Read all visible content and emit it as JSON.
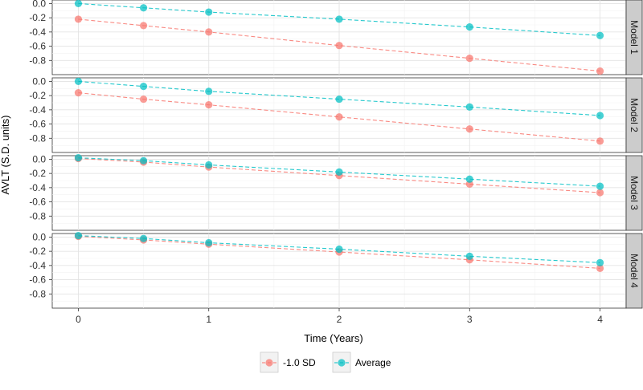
{
  "chart_data": {
    "type": "line",
    "xlabel": "Time (Years)",
    "ylabel": "AVLT (S.D. units)",
    "x": [
      0,
      0.5,
      1,
      2,
      3,
      4
    ],
    "x_ticks": [
      0,
      1,
      2,
      3,
      4
    ],
    "x_tick_labels": [
      "0",
      "1",
      "2",
      "3",
      "4"
    ],
    "xlim": [
      -0.2,
      4.2
    ],
    "ylim": [
      -1.0,
      0.05
    ],
    "y_ticks": [
      0.0,
      -0.2,
      -0.4,
      -0.6,
      -0.8
    ],
    "y_tick_labels": [
      "0.0",
      "-0.2",
      "-0.4",
      "-0.6",
      "-0.8"
    ],
    "grid": true,
    "legend_position": "bottom",
    "colors": {
      "-1.0 SD": "#F8766D",
      "Average": "#00BFC4",
      "panel_background": "#FFFFFF",
      "strip_background": "#CCCCCC"
    },
    "facets": [
      {
        "label": "Model 1",
        "series": [
          {
            "name": "-1.0 SD",
            "values": [
              -0.22,
              -0.31,
              -0.4,
              -0.59,
              -0.77,
              -0.95
            ]
          },
          {
            "name": "Average",
            "values": [
              0.0,
              -0.06,
              -0.12,
              -0.22,
              -0.33,
              -0.45
            ]
          }
        ]
      },
      {
        "label": "Model 2",
        "series": [
          {
            "name": "-1.0 SD",
            "values": [
              -0.16,
              -0.25,
              -0.33,
              -0.5,
              -0.67,
              -0.84
            ]
          },
          {
            "name": "Average",
            "values": [
              0.0,
              -0.07,
              -0.14,
              -0.25,
              -0.36,
              -0.48
            ]
          }
        ]
      },
      {
        "label": "Model 3",
        "series": [
          {
            "name": "-1.0 SD",
            "values": [
              0.01,
              -0.04,
              -0.11,
              -0.23,
              -0.35,
              -0.47
            ]
          },
          {
            "name": "Average",
            "values": [
              0.02,
              -0.02,
              -0.08,
              -0.18,
              -0.28,
              -0.38
            ]
          }
        ]
      },
      {
        "label": "Model 4",
        "series": [
          {
            "name": "-1.0 SD",
            "values": [
              0.01,
              -0.04,
              -0.1,
              -0.21,
              -0.32,
              -0.44
            ]
          },
          {
            "name": "Average",
            "values": [
              0.02,
              -0.02,
              -0.08,
              -0.17,
              -0.27,
              -0.36
            ]
          }
        ]
      }
    ],
    "legend": [
      {
        "name": "-1.0 SD"
      },
      {
        "name": "Average"
      }
    ]
  }
}
